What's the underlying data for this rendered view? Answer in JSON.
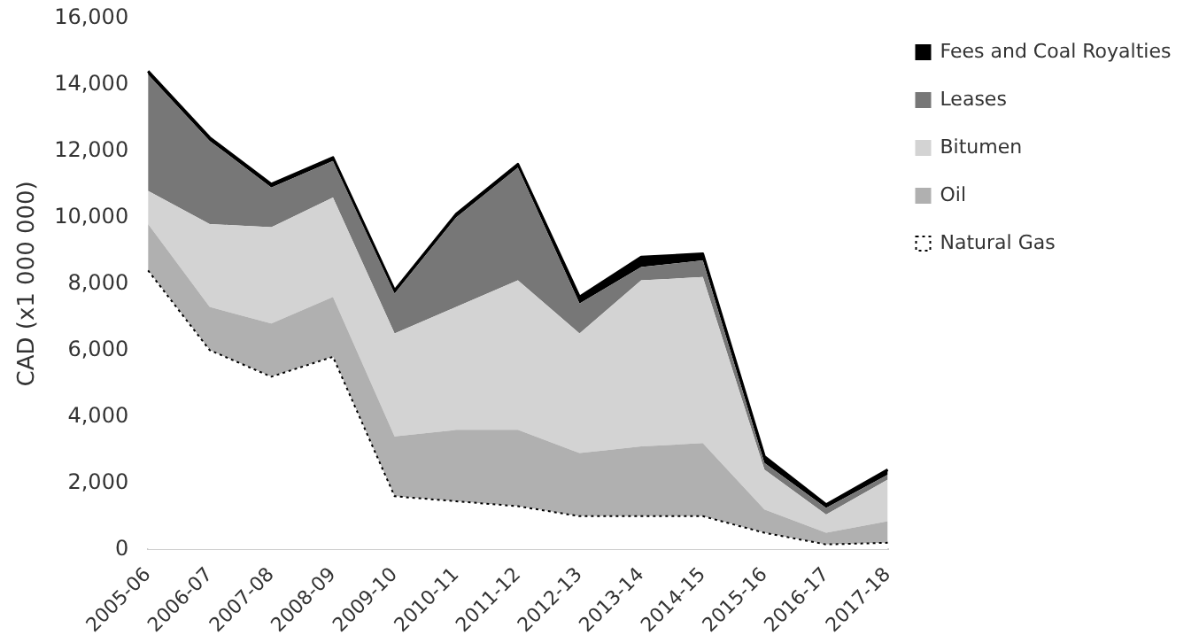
{
  "chart_data": {
    "type": "area",
    "stacked": true,
    "ylabel": "CAD (x1 000 000)",
    "categories": [
      "2005-06",
      "2006-07",
      "2007-08",
      "2008-09",
      "2009-10",
      "2010-11",
      "2011-12",
      "2012-13",
      "2013-14",
      "2014-15",
      "2015-16",
      "2016-17",
      "2017-18"
    ],
    "series": [
      {
        "name": "Natural Gas",
        "color": "#ffffff",
        "line_style": "dotted",
        "values": [
          8400,
          6000,
          5200,
          5800,
          1600,
          1450,
          1300,
          1000,
          1000,
          1000,
          500,
          150,
          200
        ]
      },
      {
        "name": "Oil",
        "color": "#b0b0b0",
        "values": [
          1400,
          1300,
          1600,
          1800,
          1800,
          2150,
          2300,
          1900,
          2100,
          2200,
          700,
          350,
          650
        ]
      },
      {
        "name": "Bitumen",
        "color": "#d3d3d3",
        "values": [
          1000,
          2500,
          2900,
          3000,
          3100,
          3700,
          4500,
          3600,
          5000,
          5000,
          1200,
          550,
          1250
        ]
      },
      {
        "name": "Leases",
        "color": "#777777",
        "values": [
          3500,
          2500,
          1200,
          1100,
          1200,
          2700,
          3400,
          900,
          400,
          500,
          200,
          200,
          150
        ]
      },
      {
        "name": "Fees and Coal Royalties",
        "color": "#000000",
        "values": [
          100,
          100,
          100,
          100,
          100,
          100,
          100,
          200,
          300,
          200,
          200,
          100,
          150
        ]
      }
    ],
    "ylim": [
      0,
      16000
    ],
    "yticks": [
      0,
      {
        "value": 2000,
        "label": "2,000"
      },
      {
        "value": 4000,
        "label": "4,000"
      },
      {
        "value": 6000,
        "label": "6,000"
      },
      {
        "value": 8000,
        "label": "8,000"
      },
      {
        "value": 10000,
        "label": "10,000"
      },
      {
        "value": 12000,
        "label": "12,000"
      },
      {
        "value": 14000,
        "label": "14,000"
      },
      {
        "value": 16000,
        "label": "16,000"
      }
    ],
    "grid": false,
    "legend": "right"
  }
}
